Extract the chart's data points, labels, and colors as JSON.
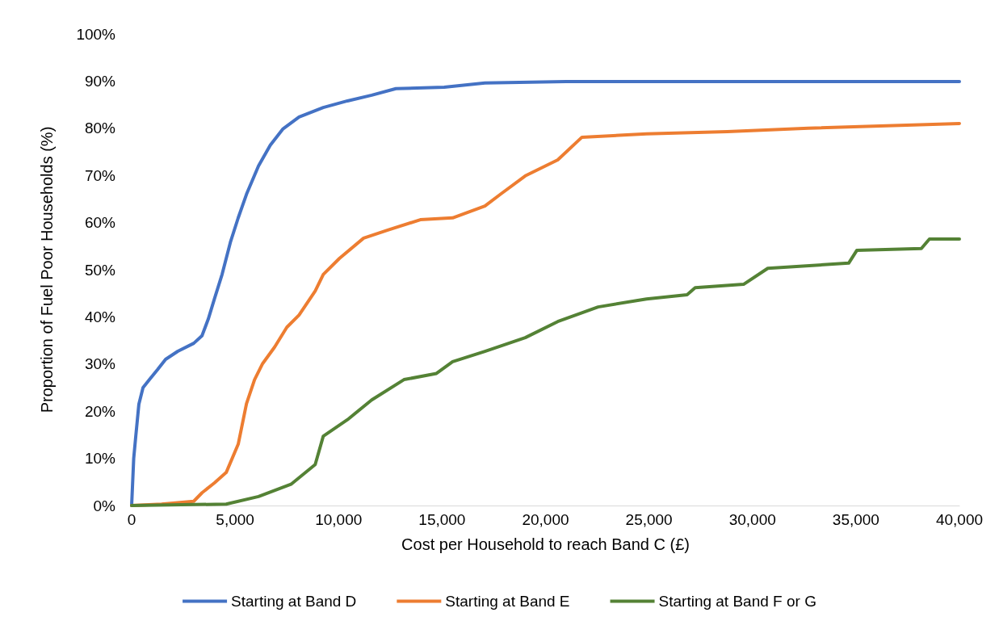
{
  "chart_data": {
    "type": "line",
    "xlabel": "Cost per Household to reach Band C (£)",
    "ylabel": "Proportion of Fuel Poor Households (%)",
    "xlim": [
      0,
      40000
    ],
    "xticks": [
      {
        "value": 0,
        "label": "0"
      },
      {
        "value": 5000,
        "label": "5,000"
      },
      {
        "value": 10000,
        "label": "10,000"
      },
      {
        "value": 15000,
        "label": "15,000"
      },
      {
        "value": 20000,
        "label": "20,000"
      },
      {
        "value": 25000,
        "label": "25,000"
      },
      {
        "value": 30000,
        "label": "30,000"
      },
      {
        "value": 35000,
        "label": "35,000"
      },
      {
        "value": 40000,
        "label": "40,000"
      }
    ],
    "ylim": [
      0,
      100
    ],
    "yticks": [
      {
        "value": 0,
        "label": "0%"
      },
      {
        "value": 10,
        "label": "10%"
      },
      {
        "value": 20,
        "label": "20%"
      },
      {
        "value": 30,
        "label": "30%"
      },
      {
        "value": 40,
        "label": "40%"
      },
      {
        "value": 50,
        "label": "50%"
      },
      {
        "value": 60,
        "label": "60%"
      },
      {
        "value": 70,
        "label": "70%"
      },
      {
        "value": 80,
        "label": "80%"
      },
      {
        "value": 90,
        "label": "90%"
      },
      {
        "value": 100,
        "label": "100%"
      }
    ],
    "grid": false,
    "legend": "bottom",
    "marker": "none",
    "line_style": "solid",
    "series": [
      {
        "name": "Starting at Band D",
        "color": "#4472c4",
        "x": [
          0,
          100,
          200,
          350,
          550,
          860,
          1250,
          1640,
          2230,
          3000,
          3400,
          3700,
          4000,
          4370,
          4770,
          5150,
          5550,
          6130,
          6700,
          7300,
          8090,
          9260,
          10430,
          11600,
          12770,
          15100,
          17070,
          20980,
          40000
        ],
        "values": [
          0,
          10,
          14.7,
          21.5,
          25,
          26.7,
          28.8,
          31,
          32.7,
          34.4,
          36,
          39.5,
          43.8,
          49,
          55.8,
          61,
          66,
          72,
          76.4,
          79.8,
          82.4,
          84.4,
          85.8,
          87,
          88.4,
          88.7,
          89.6,
          89.9,
          89.9
        ]
      },
      {
        "name": "Starting at Band E",
        "color": "#ed7d31",
        "x": [
          0,
          1450,
          3000,
          3400,
          4000,
          4570,
          5150,
          5550,
          5940,
          6330,
          6910,
          7500,
          8090,
          8870,
          9260,
          10040,
          11210,
          12380,
          13950,
          15510,
          17070,
          17850,
          19020,
          20590,
          21760,
          24880,
          28790,
          32700,
          40000
        ],
        "values": [
          0,
          0.3,
          0.9,
          2.7,
          4.8,
          7,
          13,
          21.6,
          26.7,
          30.1,
          33.6,
          37.8,
          40.4,
          45.5,
          49,
          52.4,
          56.7,
          58.4,
          60.6,
          61,
          63.5,
          66.1,
          69.9,
          73.3,
          78.1,
          78.8,
          79.3,
          80,
          81
        ]
      },
      {
        "name": "Starting at Band F or G",
        "color": "#548235",
        "x": [
          0,
          4570,
          6130,
          7700,
          8870,
          9260,
          10430,
          11600,
          13160,
          14730,
          15510,
          17070,
          19020,
          20590,
          22540,
          24880,
          26840,
          27230,
          29570,
          30740,
          34650,
          35040,
          38160,
          38550,
          40000
        ],
        "values": [
          0,
          0.3,
          1.9,
          4.5,
          8.7,
          14.7,
          18.2,
          22.4,
          26.7,
          28,
          30.5,
          32.7,
          35.6,
          39,
          42.1,
          43.8,
          44.7,
          46.2,
          46.9,
          50.3,
          51.4,
          54.1,
          54.5,
          56.5,
          56.5
        ]
      }
    ]
  }
}
